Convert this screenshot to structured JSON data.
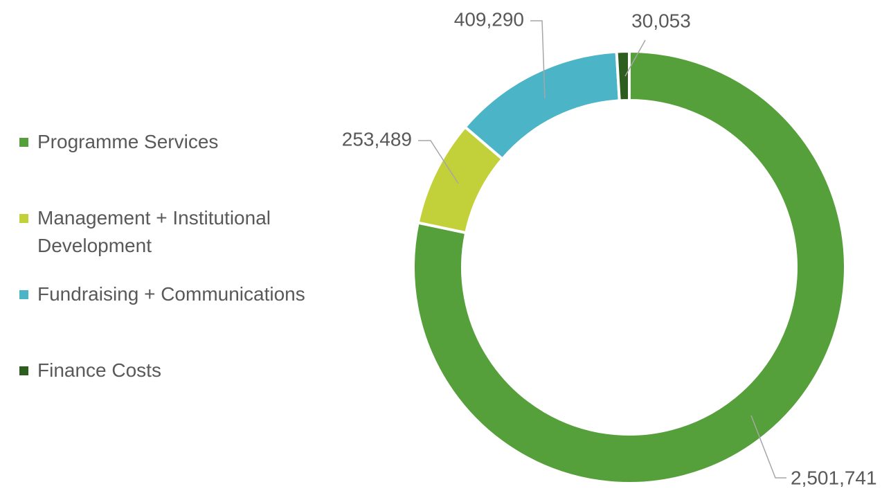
{
  "chart_data": {
    "type": "donut",
    "categories": [
      "Programme Services",
      "Management + Institutional Development",
      "Fundraising + Communications",
      "Finance Costs"
    ],
    "values": [
      2501741,
      253489,
      409290,
      30053
    ],
    "value_labels": [
      "2,501,741",
      "253,489",
      "409,290",
      "30,053"
    ],
    "colors": [
      "#55a03a",
      "#c2d13a",
      "#4bb4c6",
      "#2d5e1f"
    ],
    "legend": "left"
  }
}
